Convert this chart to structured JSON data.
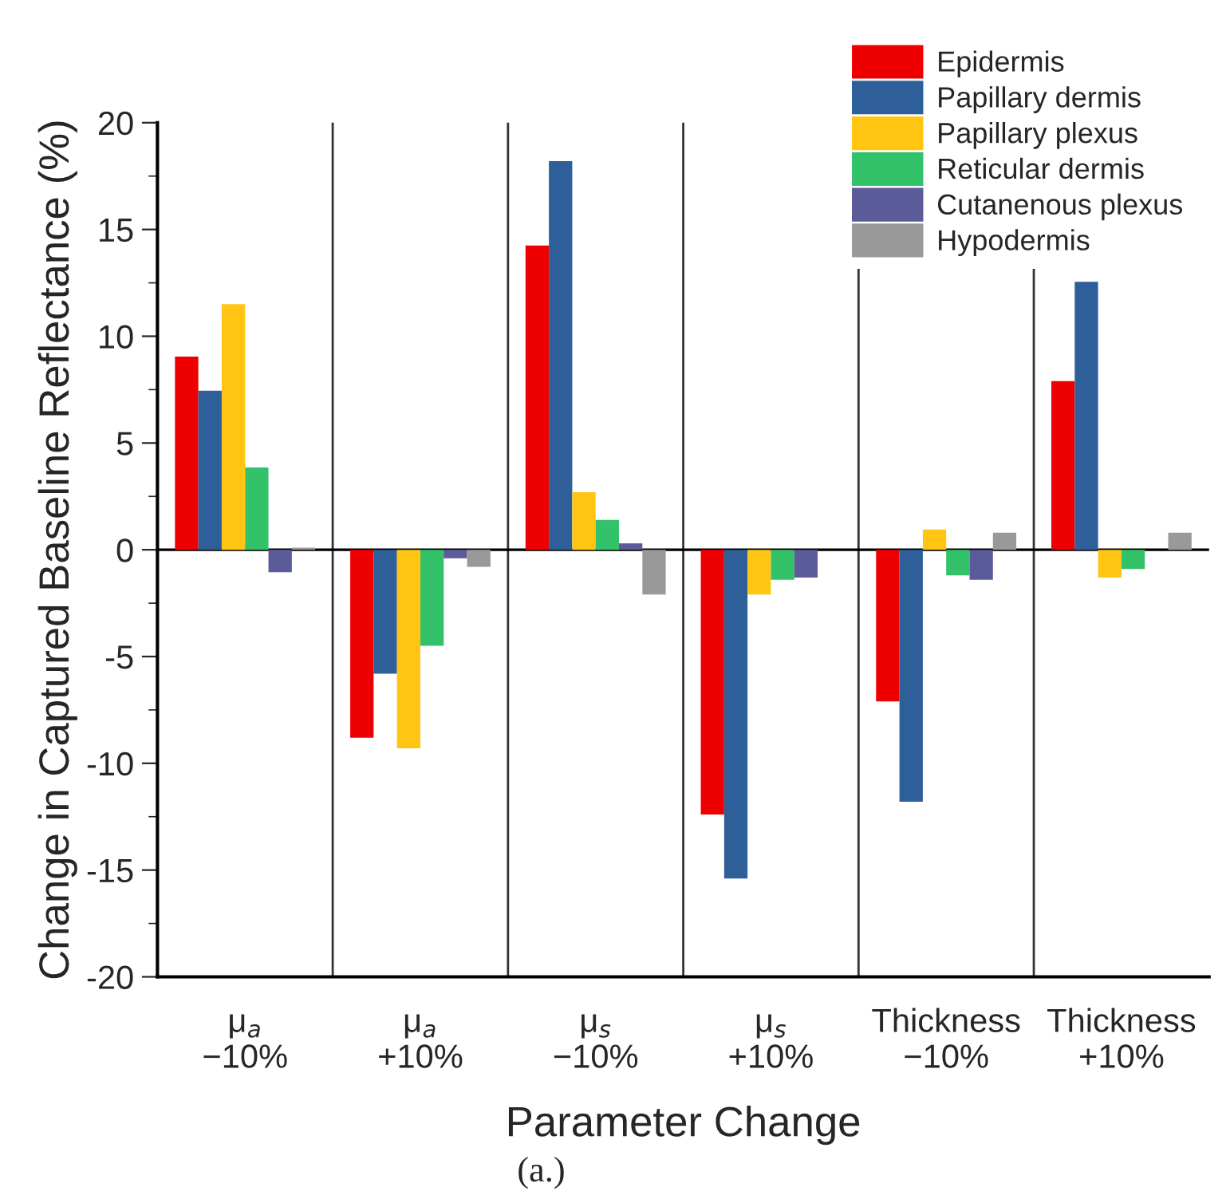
{
  "chart_data": {
    "type": "bar",
    "xlabel": "Parameter Change",
    "ylabel": "Change in Captured Baseline Reflectance (%)",
    "categories": [
      "μ$_{a}$\n−10%",
      "μ$_{a}$\n+10%",
      "μ$_{s}$\n−10%",
      "μ$_{s}$\n+10%",
      "Thickness\n−10%",
      "Thickness\n+10%"
    ],
    "series": [
      {
        "name": "Epidermis",
        "color": "#ee0000",
        "values": [
          9.05,
          -8.8,
          14.25,
          -12.4,
          -7.1,
          7.9
        ]
      },
      {
        "name": "Papillary dermis",
        "color": "#2e5f99",
        "values": [
          7.45,
          -5.8,
          18.2,
          -15.4,
          -11.8,
          12.55
        ]
      },
      {
        "name": "Papillary plexus",
        "color": "#ffc512",
        "values": [
          11.5,
          -9.3,
          2.7,
          -2.1,
          0.95,
          -1.3
        ]
      },
      {
        "name": "Reticular dermis",
        "color": "#33c16a",
        "values": [
          3.85,
          -4.5,
          1.4,
          -1.4,
          -1.2,
          -0.9
        ]
      },
      {
        "name": "Cutanenous plexus",
        "color": "#5b5b9a",
        "values": [
          -1.05,
          -0.4,
          0.3,
          -1.3,
          -1.4,
          0
        ]
      },
      {
        "name": "Hypodermis",
        "color": "#999999",
        "values": [
          0.1,
          -0.8,
          -2.1,
          0,
          0.8,
          0.8
        ]
      }
    ],
    "ylim": [
      -20,
      20
    ],
    "yticks": [
      -20,
      -15,
      -10,
      -5,
      0,
      5,
      10,
      15,
      20
    ],
    "ref_lines": [
      {
        "axis": "y",
        "value": 0,
        "color": "#000000"
      }
    ],
    "annotations": [
      "(a.)"
    ],
    "legend": "top right",
    "grid": false
  }
}
